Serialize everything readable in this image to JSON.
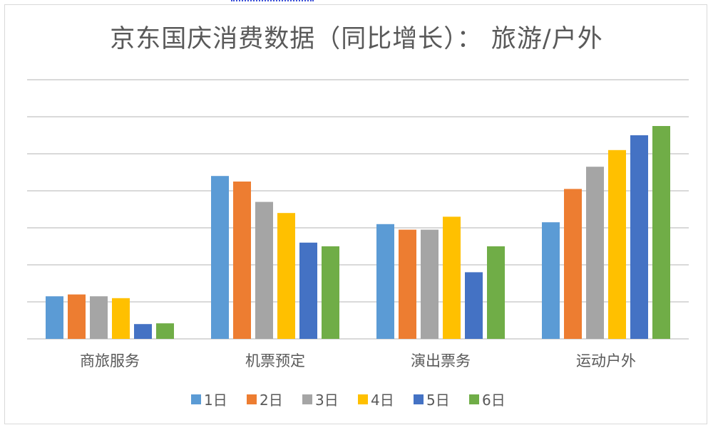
{
  "chart_data": {
    "type": "bar",
    "title": "京东国庆消费数据（同比增长）： 旅游/户外",
    "categories": [
      "商旅服务",
      "机票预定",
      "演出票务",
      "运动户外"
    ],
    "series": [
      {
        "name": "1日",
        "color": "#5B9BD5",
        "values": [
          1.15,
          4.4,
          3.1,
          3.15
        ]
      },
      {
        "name": "2日",
        "color": "#ED7D31",
        "values": [
          1.2,
          4.25,
          2.95,
          4.05
        ]
      },
      {
        "name": "3日",
        "color": "#A5A5A5",
        "values": [
          1.15,
          3.7,
          2.95,
          4.65
        ]
      },
      {
        "name": "4日",
        "color": "#FFC000",
        "values": [
          1.1,
          3.4,
          3.3,
          5.1
        ]
      },
      {
        "name": "5日",
        "color": "#4472C4",
        "values": [
          0.4,
          2.6,
          1.8,
          5.5
        ]
      },
      {
        "name": "6日",
        "color": "#70AD47",
        "values": [
          0.42,
          2.5,
          2.5,
          5.75
        ]
      }
    ],
    "ylim": [
      0,
      7
    ],
    "grid": true,
    "y_tick_labels_shown": false,
    "legend_position": "bottom"
  }
}
